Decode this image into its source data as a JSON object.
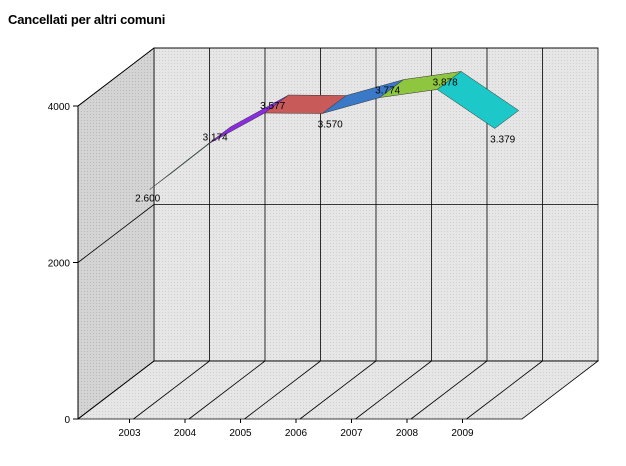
{
  "chart_data": {
    "type": "line",
    "title": "Cancellati per altri comuni",
    "xlabel": "",
    "ylabel": "",
    "categories": [
      "2003",
      "2004",
      "2005",
      "2006",
      "2007",
      "2008",
      "2009"
    ],
    "series": [
      {
        "values": [
          2600,
          3174,
          3577,
          3570,
          3774,
          3878,
          3379
        ],
        "labels": [
          "2.600",
          "3.174",
          "3.577",
          "3.570",
          "3.774",
          "3.878",
          "3.379"
        ]
      }
    ],
    "ylim": [
      0,
      4000
    ],
    "yticks": [
      0,
      2000,
      4000
    ],
    "ytick_labels": [
      "0",
      "2000",
      "4000"
    ],
    "grid": true,
    "legend": "none",
    "style": "3d-ribbon",
    "ribbon_colors": [
      "#2e8b57",
      "#8a2be2",
      "#c85a5a",
      "#3a78c8",
      "#8ec63f",
      "#1cc8c8"
    ]
  }
}
